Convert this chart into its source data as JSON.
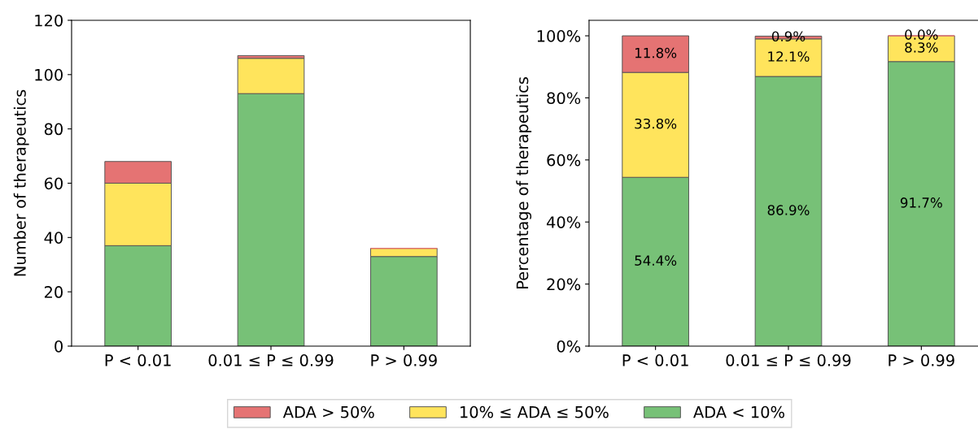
{
  "chart_data": [
    {
      "type": "bar",
      "stacked": true,
      "categories": [
        "P < 0.01",
        "0.01 ≤ P ≤ 0.99",
        "P > 0.99"
      ],
      "ylabel": "Number of therapeutics",
      "ylim": [
        0,
        120
      ],
      "yticks": [
        0,
        20,
        40,
        60,
        80,
        100,
        120
      ],
      "legend": "bottom",
      "series": [
        {
          "name": "ADA < 10%",
          "color": "#77c177",
          "values": [
            37,
            93,
            33
          ]
        },
        {
          "name": "10% ≤ ADA ≤ 50%",
          "color": "#ffe45c",
          "values": [
            23,
            13,
            3
          ]
        },
        {
          "name": "ADA > 50%",
          "color": "#e57373",
          "values": [
            8,
            1,
            0
          ]
        }
      ]
    },
    {
      "type": "bar",
      "stacked": true,
      "categories": [
        "P < 0.01",
        "0.01 ≤ P ≤ 0.99",
        "P > 0.99"
      ],
      "ylabel": "Percentage of therapeutics",
      "ylim": [
        0,
        105
      ],
      "yticks": [
        {
          "value": 0,
          "label": "0%"
        },
        {
          "value": 20,
          "label": "20%"
        },
        {
          "value": 40,
          "label": "40%"
        },
        {
          "value": 60,
          "label": "60%"
        },
        {
          "value": 80,
          "label": "80%"
        },
        {
          "value": 100,
          "label": "100%"
        }
      ],
      "series": [
        {
          "color": "#77c177",
          "values": [
            54.4,
            86.9,
            91.7
          ],
          "value_labels": [
            "54.4%",
            "86.9%",
            "91.7%"
          ]
        },
        {
          "color": "#ffe45c",
          "values": [
            33.8,
            12.1,
            8.3
          ],
          "value_labels": [
            "33.8%",
            "12.1%",
            "8.3%"
          ]
        },
        {
          "color": "#e57373",
          "values": [
            11.8,
            0.9,
            0.0
          ],
          "value_labels": [
            "11.8%",
            "0.9%",
            "0.0%"
          ]
        }
      ]
    }
  ]
}
